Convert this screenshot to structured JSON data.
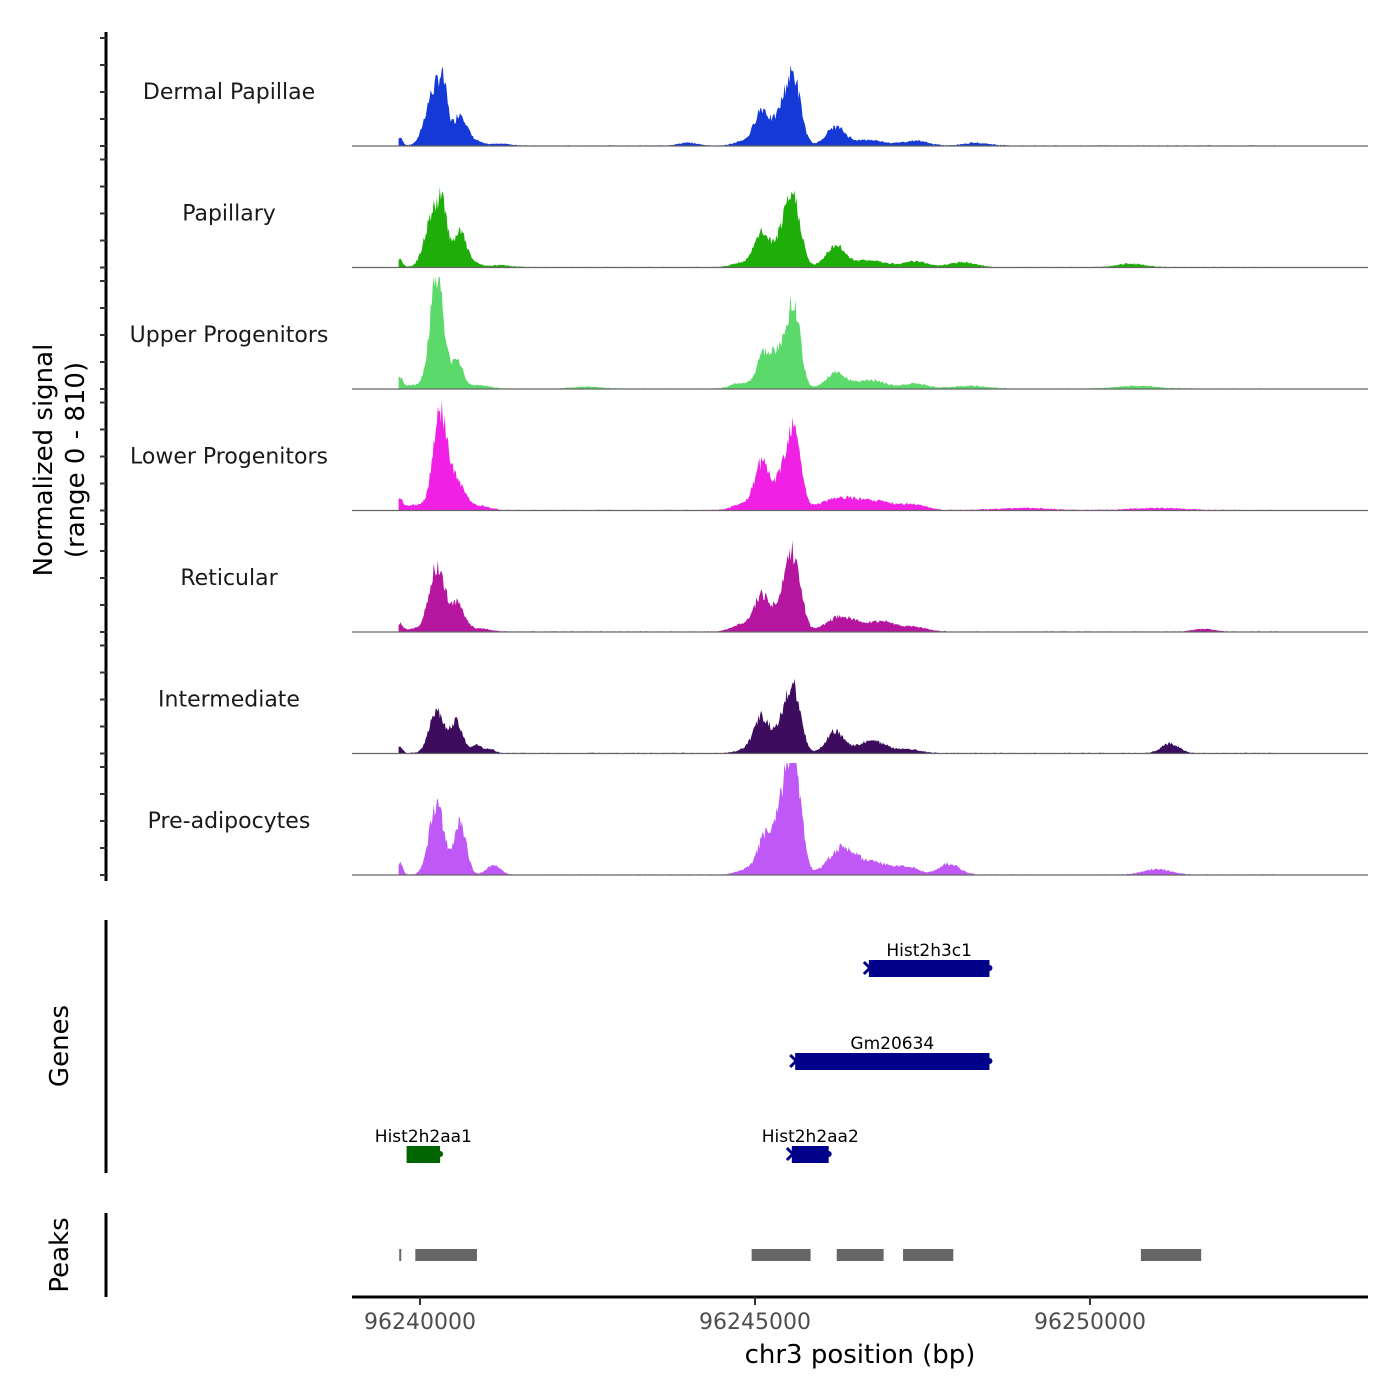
{
  "chart_data": {
    "type": "area",
    "title": "",
    "ylabel_line1": "Normalized signal",
    "ylabel_line2": "(range 0 - 810)",
    "ylim": [
      0,
      810
    ],
    "xlabel": "chr3 position (bp)",
    "xlim": [
      96238985,
      96254150
    ],
    "x_ticks": [
      96240000,
      96245000,
      96250000
    ],
    "x_tick_labels": [
      "96240000",
      "96245000",
      "96250000"
    ],
    "genes_panel_label": "Genes",
    "peaks_panel_label": "Peaks",
    "tracks": [
      {
        "name": "Dermal Papillae",
        "color": "#1439D6",
        "peaks": [
          [
            96239700,
            60,
            40
          ],
          [
            96240200,
            380,
            120
          ],
          [
            96240350,
            310,
            70
          ],
          [
            96240600,
            230,
            90
          ],
          [
            96240800,
            40,
            100
          ],
          [
            96241200,
            15,
            150
          ],
          [
            96244000,
            20,
            150
          ],
          [
            96244800,
            30,
            120
          ],
          [
            96245100,
            260,
            110
          ],
          [
            96245450,
            300,
            130
          ],
          [
            96245600,
            340,
            100
          ],
          [
            96246200,
            130,
            140
          ],
          [
            96246700,
            40,
            250
          ],
          [
            96247400,
            35,
            180
          ],
          [
            96248300,
            20,
            200
          ]
        ]
      },
      {
        "name": "Papillary",
        "color": "#1FAE09",
        "peaks": [
          [
            96239700,
            60,
            40
          ],
          [
            96240200,
            390,
            120
          ],
          [
            96240350,
            300,
            70
          ],
          [
            96240600,
            250,
            90
          ],
          [
            96240800,
            30,
            100
          ],
          [
            96241200,
            15,
            150
          ],
          [
            96244800,
            30,
            150
          ],
          [
            96245100,
            240,
            110
          ],
          [
            96245450,
            290,
            130
          ],
          [
            96245600,
            340,
            100
          ],
          [
            96246200,
            150,
            140
          ],
          [
            96246700,
            50,
            250
          ],
          [
            96247400,
            40,
            180
          ],
          [
            96248100,
            35,
            200
          ],
          [
            96250600,
            25,
            200
          ]
        ]
      },
      {
        "name": "Upper Progenitors",
        "color": "#5BD96A",
        "peaks": [
          [
            96239700,
            70,
            40
          ],
          [
            96239900,
            25,
            150
          ],
          [
            96240250,
            810,
            100
          ],
          [
            96240550,
            200,
            90
          ],
          [
            96240900,
            25,
            150
          ],
          [
            96242500,
            15,
            200
          ],
          [
            96244800,
            40,
            150
          ],
          [
            96245150,
            250,
            110
          ],
          [
            96245450,
            330,
            130
          ],
          [
            96245600,
            430,
            90
          ],
          [
            96246200,
            110,
            140
          ],
          [
            96246700,
            60,
            250
          ],
          [
            96247400,
            35,
            180
          ],
          [
            96248200,
            20,
            250
          ],
          [
            96250700,
            20,
            300
          ]
        ]
      },
      {
        "name": "Lower Progenitors",
        "color": "#F020E4",
        "peaks": [
          [
            96239700,
            70,
            40
          ],
          [
            96239950,
            40,
            200
          ],
          [
            96240300,
            700,
            100
          ],
          [
            96240550,
            200,
            120
          ],
          [
            96240900,
            30,
            150
          ],
          [
            96244800,
            40,
            150
          ],
          [
            96245100,
            330,
            110
          ],
          [
            96245450,
            300,
            130
          ],
          [
            96245600,
            450,
            90
          ],
          [
            96246300,
            90,
            300
          ],
          [
            96246900,
            50,
            250
          ],
          [
            96247400,
            35,
            180
          ],
          [
            96249000,
            15,
            400
          ],
          [
            96251000,
            15,
            400
          ]
        ]
      },
      {
        "name": "Reticular",
        "color": "#B5159F",
        "peaks": [
          [
            96239700,
            50,
            40
          ],
          [
            96239950,
            20,
            200
          ],
          [
            96240250,
            460,
            110
          ],
          [
            96240550,
            200,
            110
          ],
          [
            96240900,
            20,
            150
          ],
          [
            96244800,
            50,
            150
          ],
          [
            96245100,
            260,
            110
          ],
          [
            96245450,
            290,
            130
          ],
          [
            96245600,
            400,
            100
          ],
          [
            96246300,
            110,
            220
          ],
          [
            96246900,
            70,
            220
          ],
          [
            96247400,
            30,
            180
          ],
          [
            96251700,
            20,
            150
          ]
        ]
      },
      {
        "name": "Intermediate",
        "color": "#3D0C5E",
        "peaks": [
          [
            96239700,
            50,
            40
          ],
          [
            96240250,
            300,
            110
          ],
          [
            96240550,
            230,
            90
          ],
          [
            96240850,
            60,
            70
          ],
          [
            96241050,
            30,
            70
          ],
          [
            96244900,
            30,
            150
          ],
          [
            96245100,
            250,
            110
          ],
          [
            96245450,
            280,
            130
          ],
          [
            96245600,
            330,
            100
          ],
          [
            96246200,
            160,
            130
          ],
          [
            96246750,
            90,
            200
          ],
          [
            96247300,
            25,
            180
          ],
          [
            96251200,
            70,
            130
          ]
        ]
      },
      {
        "name": "Pre-adipocytes",
        "color": "#C057F7",
        "peaks": [
          [
            96239700,
            90,
            40
          ],
          [
            96240250,
            500,
            110
          ],
          [
            96240600,
            370,
            90
          ],
          [
            96241100,
            70,
            100
          ],
          [
            96244900,
            40,
            150
          ],
          [
            96245150,
            250,
            110
          ],
          [
            96245450,
            560,
            130
          ],
          [
            96245600,
            600,
            100
          ],
          [
            96246300,
            190,
            200
          ],
          [
            96246800,
            90,
            220
          ],
          [
            96247300,
            55,
            150
          ],
          [
            96247900,
            80,
            150
          ],
          [
            96251000,
            40,
            200
          ]
        ]
      }
    ],
    "genes": [
      {
        "name": "Hist2h3c1",
        "start": 96246700,
        "end": 96248500,
        "strand": "-",
        "color": "#00008B",
        "row": 0
      },
      {
        "name": "Gm20634",
        "start": 96245600,
        "end": 96248500,
        "strand": "-",
        "color": "#00008B",
        "row": 1
      },
      {
        "name": "Hist2h2aa1",
        "start": 96239800,
        "end": 96240300,
        "strand": "+",
        "color": "#006400",
        "row": 2
      },
      {
        "name": "Hist2h2aa2",
        "start": 96245550,
        "end": 96246100,
        "strand": "-",
        "color": "#00008B",
        "row": 2
      }
    ],
    "peaks": [
      {
        "start": 96239690,
        "end": 96239720
      },
      {
        "start": 96239930,
        "end": 96240850
      },
      {
        "start": 96244950,
        "end": 96245830
      },
      {
        "start": 96246220,
        "end": 96246920
      },
      {
        "start": 96247210,
        "end": 96247960
      },
      {
        "start": 96250760,
        "end": 96251660
      }
    ],
    "peak_color": "#666666"
  }
}
